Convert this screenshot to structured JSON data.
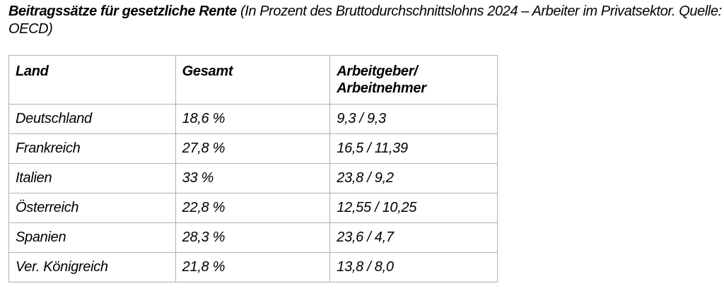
{
  "title": {
    "bold": "Beitragssätze für gesetzliche Rente",
    "rest": " (In Prozent des Bruttodurchschnittslohns 2024 – Arbeiter im Privatsektor. Quelle: OECD)"
  },
  "table": {
    "headers": [
      "Land",
      "Gesamt",
      "Arbeitgeber/ Arbeitnehmer"
    ],
    "rows": [
      [
        "Deutschland",
        "18,6 %",
        "9,3 / 9,3"
      ],
      [
        "Frankreich",
        "27,8 %",
        "16,5 / 11,39"
      ],
      [
        "Italien",
        "33 %",
        "23,8 / 9,2"
      ],
      [
        "Österreich",
        "22,8 %",
        "12,55 / 10,25"
      ],
      [
        "Spanien",
        "28,3 %",
        "23,6 / 4,7"
      ],
      [
        "Ver. Königreich",
        "21,8 %",
        "13,8 / 8,0"
      ]
    ]
  }
}
